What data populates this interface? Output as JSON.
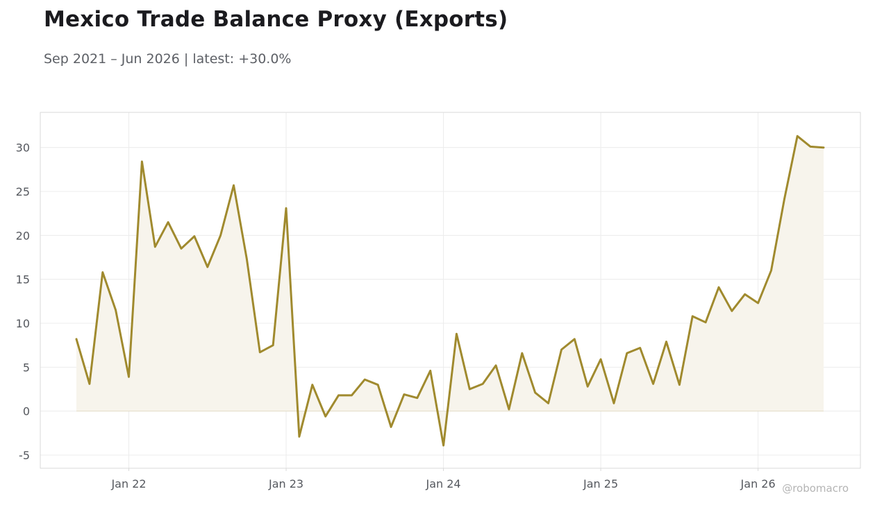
{
  "header": {
    "title": "Mexico Trade Balance Proxy (Exports)",
    "subtitle": "Sep 2021 – Jun 2026 | latest: +30.0%"
  },
  "watermark": "@robomacro",
  "colors": {
    "line": "#a08a2e",
    "area": "#f7f4ec",
    "grid": "#ececec",
    "frame": "#d9d9d9",
    "zero_line": "#e4ddc9"
  },
  "chart_data": {
    "type": "line",
    "title": "Mexico Trade Balance Proxy (Exports)",
    "subtitle": "Sep 2021 – Jun 2026 | latest: +30.0%",
    "xlabel": "",
    "ylabel": "",
    "x_start": "2021-09",
    "x_frequency": "monthly",
    "x": [
      "2021-09",
      "2021-10",
      "2021-11",
      "2021-12",
      "2022-01",
      "2022-02",
      "2022-03",
      "2022-04",
      "2022-05",
      "2022-06",
      "2022-07",
      "2022-08",
      "2022-09",
      "2022-10",
      "2022-11",
      "2022-12",
      "2023-01",
      "2023-02",
      "2023-03",
      "2023-04",
      "2023-05",
      "2023-06",
      "2023-07",
      "2023-08",
      "2023-09",
      "2023-10",
      "2023-11",
      "2023-12",
      "2024-01",
      "2024-02",
      "2024-03",
      "2024-04",
      "2024-05",
      "2024-06",
      "2024-07",
      "2024-08",
      "2024-09",
      "2024-10",
      "2024-11",
      "2024-12",
      "2025-01",
      "2025-02",
      "2025-03",
      "2025-04",
      "2025-05",
      "2025-06",
      "2025-07",
      "2025-08",
      "2025-09",
      "2025-10",
      "2025-11",
      "2025-12",
      "2026-01",
      "2026-02",
      "2026-03",
      "2026-04",
      "2026-05",
      "2026-06"
    ],
    "series": [
      {
        "values": [
          8.2,
          3.1,
          15.8,
          11.5,
          3.9,
          28.4,
          18.7,
          21.5,
          18.5,
          19.9,
          16.4,
          20.0,
          25.7,
          17.3,
          6.7,
          7.5,
          23.1,
          -2.9,
          3.0,
          -0.6,
          1.8,
          1.8,
          3.6,
          3.0,
          -1.8,
          1.9,
          1.5,
          4.6,
          -3.9,
          8.8,
          2.5,
          3.1,
          5.2,
          0.2,
          6.6,
          2.1,
          0.9,
          7.0,
          8.2,
          2.8,
          5.9,
          0.9,
          6.6,
          7.2,
          3.1,
          7.9,
          3.0,
          10.8,
          10.1,
          14.1,
          11.4,
          13.3,
          12.3,
          16.0,
          24.1,
          31.3,
          30.1,
          30.0
        ]
      }
    ],
    "ylim": [
      -6.5,
      34
    ],
    "yticks": [
      -5,
      0,
      5,
      10,
      15,
      20,
      25,
      30
    ],
    "xticks": [
      {
        "date": "2022-01",
        "label": "Jan 22"
      },
      {
        "date": "2023-01",
        "label": "Jan 23"
      },
      {
        "date": "2024-01",
        "label": "Jan 24"
      },
      {
        "date": "2025-01",
        "label": "Jan 25"
      },
      {
        "date": "2026-01",
        "label": "Jan 26"
      }
    ],
    "grid": true,
    "area_fill": true,
    "legend": "none"
  }
}
